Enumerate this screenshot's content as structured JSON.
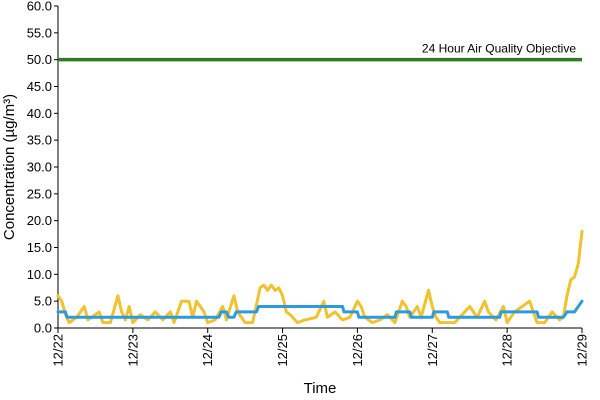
{
  "chart_data": {
    "type": "line",
    "title": "",
    "xlabel": "Time",
    "ylabel": "Concentration (µg/m³)",
    "ylim": [
      0,
      60
    ],
    "yticks": [
      "0.0",
      "5.0",
      "10.0",
      "15.0",
      "20.0",
      "25.0",
      "30.0",
      "35.0",
      "40.0",
      "45.0",
      "50.0",
      "55.0",
      "60.0"
    ],
    "xlim": [
      0,
      7
    ],
    "xticks": [
      "12/22",
      "12/23",
      "12/24",
      "12/25",
      "12/26",
      "12/27",
      "12/28",
      "12/29"
    ],
    "grid": false,
    "legend": "none",
    "reference_line": {
      "label": "24 Hour Air Quality Objective",
      "value": 50,
      "color": "#2e7d1e"
    },
    "series": [
      {
        "color": "#f2c12e",
        "points": [
          [
            0.0,
            6.0
          ],
          [
            0.05,
            5.0
          ],
          [
            0.1,
            2.5
          ],
          [
            0.15,
            1.0
          ],
          [
            0.25,
            2.0
          ],
          [
            0.35,
            4.0
          ],
          [
            0.4,
            1.5
          ],
          [
            0.5,
            2.5
          ],
          [
            0.55,
            3.0
          ],
          [
            0.6,
            1.0
          ],
          [
            0.7,
            1.0
          ],
          [
            0.8,
            6.0
          ],
          [
            0.85,
            3.0
          ],
          [
            0.9,
            1.5
          ],
          [
            0.95,
            4.0
          ],
          [
            1.0,
            1.0
          ],
          [
            1.1,
            2.5
          ],
          [
            1.2,
            1.5
          ],
          [
            1.3,
            3.0
          ],
          [
            1.4,
            1.5
          ],
          [
            1.5,
            3.0
          ],
          [
            1.55,
            1.0
          ],
          [
            1.65,
            5.0
          ],
          [
            1.75,
            5.0
          ],
          [
            1.8,
            2.0
          ],
          [
            1.85,
            5.0
          ],
          [
            1.95,
            3.0
          ],
          [
            2.0,
            1.0
          ],
          [
            2.1,
            1.5
          ],
          [
            2.2,
            4.0
          ],
          [
            2.25,
            1.5
          ],
          [
            2.35,
            6.0
          ],
          [
            2.4,
            3.0
          ],
          [
            2.5,
            1.0
          ],
          [
            2.6,
            1.0
          ],
          [
            2.7,
            7.5
          ],
          [
            2.75,
            8.0
          ],
          [
            2.8,
            7.0
          ],
          [
            2.85,
            8.0
          ],
          [
            2.9,
            7.0
          ],
          [
            2.95,
            7.5
          ],
          [
            3.0,
            6.0
          ],
          [
            3.05,
            3.0
          ],
          [
            3.1,
            2.5
          ],
          [
            3.2,
            1.0
          ],
          [
            3.3,
            1.5
          ],
          [
            3.45,
            2.0
          ],
          [
            3.55,
            5.0
          ],
          [
            3.6,
            2.0
          ],
          [
            3.7,
            3.0
          ],
          [
            3.8,
            1.5
          ],
          [
            3.9,
            2.0
          ],
          [
            4.0,
            5.0
          ],
          [
            4.05,
            4.0
          ],
          [
            4.1,
            2.0
          ],
          [
            4.2,
            1.0
          ],
          [
            4.3,
            1.5
          ],
          [
            4.4,
            2.5
          ],
          [
            4.5,
            1.0
          ],
          [
            4.6,
            5.0
          ],
          [
            4.65,
            4.0
          ],
          [
            4.7,
            2.0
          ],
          [
            4.8,
            4.0
          ],
          [
            4.85,
            2.0
          ],
          [
            4.95,
            7.0
          ],
          [
            5.0,
            4.0
          ],
          [
            5.05,
            2.0
          ],
          [
            5.1,
            1.0
          ],
          [
            5.2,
            1.0
          ],
          [
            5.3,
            1.0
          ],
          [
            5.4,
            2.5
          ],
          [
            5.5,
            4.0
          ],
          [
            5.6,
            2.0
          ],
          [
            5.7,
            5.0
          ],
          [
            5.75,
            3.0
          ],
          [
            5.85,
            1.5
          ],
          [
            5.95,
            4.0
          ],
          [
            6.0,
            1.0
          ],
          [
            6.1,
            3.0
          ],
          [
            6.2,
            4.0
          ],
          [
            6.3,
            5.0
          ],
          [
            6.4,
            1.0
          ],
          [
            6.5,
            1.0
          ],
          [
            6.55,
            2.0
          ],
          [
            6.6,
            3.0
          ],
          [
            6.7,
            1.5
          ],
          [
            6.75,
            2.0
          ],
          [
            6.8,
            6.0
          ],
          [
            6.85,
            9.0
          ],
          [
            6.9,
            9.5
          ],
          [
            6.95,
            12.0
          ],
          [
            7.0,
            18.0
          ]
        ]
      },
      {
        "color": "#2b9be0",
        "points": [
          [
            0.0,
            3.0
          ],
          [
            0.1,
            3.0
          ],
          [
            0.12,
            2.0
          ],
          [
            2.15,
            2.0
          ],
          [
            2.18,
            3.0
          ],
          [
            2.25,
            3.0
          ],
          [
            2.28,
            2.0
          ],
          [
            2.35,
            2.0
          ],
          [
            2.38,
            3.0
          ],
          [
            2.65,
            3.0
          ],
          [
            2.68,
            4.0
          ],
          [
            3.8,
            4.0
          ],
          [
            3.82,
            3.0
          ],
          [
            4.0,
            3.0
          ],
          [
            4.02,
            2.0
          ],
          [
            4.5,
            2.0
          ],
          [
            4.52,
            3.0
          ],
          [
            4.7,
            3.0
          ],
          [
            4.72,
            2.0
          ],
          [
            5.0,
            2.0
          ],
          [
            5.02,
            3.0
          ],
          [
            5.2,
            3.0
          ],
          [
            5.22,
            2.0
          ],
          [
            5.9,
            2.0
          ],
          [
            5.92,
            3.0
          ],
          [
            6.1,
            3.0
          ],
          [
            6.4,
            3.0
          ],
          [
            6.42,
            2.0
          ],
          [
            6.75,
            2.0
          ],
          [
            6.8,
            3.0
          ],
          [
            6.9,
            3.0
          ],
          [
            6.95,
            4.0
          ],
          [
            7.0,
            5.0
          ]
        ]
      }
    ]
  }
}
